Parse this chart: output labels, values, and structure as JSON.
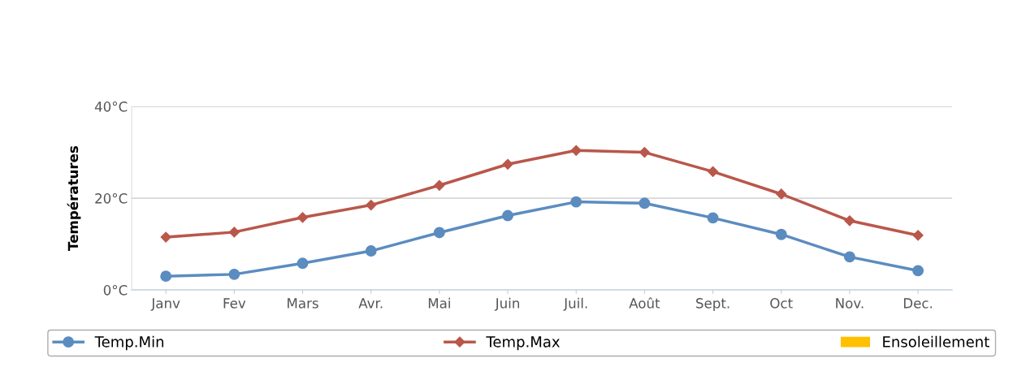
{
  "chart_data": {
    "type": "line",
    "ylabel": "Températures",
    "categories": [
      "Janv",
      "Fev",
      "Mars",
      "Avr.",
      "Mai",
      "Juin",
      "Juil.",
      "Août",
      "Sept.",
      "Oct",
      "Nov.",
      "Dec."
    ],
    "series": [
      {
        "name": "Temp.Min",
        "color": "#5b8cc0",
        "marker": "circle",
        "values": [
          3.0,
          3.4,
          5.8,
          8.5,
          12.5,
          16.2,
          19.2,
          18.9,
          15.7,
          12.1,
          7.2,
          4.2
        ]
      },
      {
        "name": "Temp.Max",
        "color": "#b9574b",
        "marker": "diamond",
        "values": [
          11.5,
          12.6,
          15.8,
          18.5,
          22.8,
          27.4,
          30.4,
          30.0,
          25.8,
          20.9,
          15.1,
          11.9
        ]
      },
      {
        "name": "Ensoleillement",
        "type": "bar",
        "color": "#ffc000",
        "values": [
          null,
          null,
          null,
          null,
          null,
          null,
          null,
          null,
          null,
          null,
          null,
          null
        ]
      }
    ],
    "ylim": [
      0,
      40
    ],
    "yticks": [
      {
        "value": 0,
        "label": "0°C"
      },
      {
        "value": 20,
        "label": "20°C"
      },
      {
        "value": 40,
        "label": "40°C"
      }
    ],
    "grid": "y",
    "legend": "bottom",
    "line_style": "solid"
  }
}
